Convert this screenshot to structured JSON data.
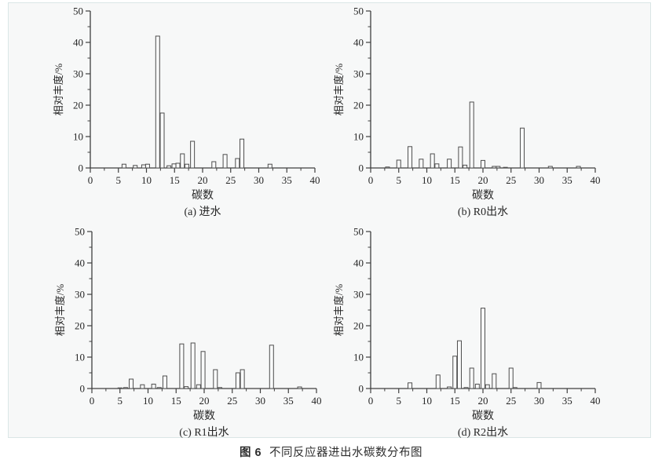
{
  "page": {
    "panel_background": "#f7f8f8",
    "panel_border": "#dae6e6",
    "axis_color": "#3f3f3f",
    "text_color": "#262626",
    "caption_number": "图 6",
    "caption_text": "不同反应器进出水碳数分布图"
  },
  "chart_data": [
    {
      "type": "bar",
      "label": "(a) 进水",
      "xlabel": "碳数",
      "ylabel": "相对丰度/%",
      "xlim": [
        0,
        40
      ],
      "ylim": [
        0,
        50
      ],
      "xticks": [
        0,
        5,
        10,
        15,
        20,
        25,
        30,
        35,
        40
      ],
      "yticks": [
        0,
        10,
        20,
        30,
        40,
        50
      ],
      "x_minor_step": 2.5,
      "y_minor_step": 5,
      "grid": false,
      "bar_fill": "#f9fafa",
      "bar_stroke": "#4d4d4d",
      "points": [
        [
          6,
          1.2
        ],
        [
          8,
          0.8
        ],
        [
          9.5,
          1.0
        ],
        [
          10.2,
          1.2
        ],
        [
          12,
          42.0
        ],
        [
          12.8,
          17.5
        ],
        [
          14,
          0.7
        ],
        [
          14.9,
          1.3
        ],
        [
          15.6,
          1.5
        ],
        [
          16.4,
          4.5
        ],
        [
          17.2,
          1.2
        ],
        [
          18.2,
          8.5
        ],
        [
          22,
          2.0
        ],
        [
          24,
          4.3
        ],
        [
          26.2,
          3.0
        ],
        [
          27,
          9.2
        ],
        [
          32,
          1.2
        ]
      ]
    },
    {
      "type": "bar",
      "label": "(b) R0出水",
      "xlabel": "碳数",
      "ylabel": "相对丰度/%",
      "xlim": [
        0,
        40
      ],
      "ylim": [
        0,
        50
      ],
      "xticks": [
        0,
        5,
        10,
        15,
        20,
        25,
        30,
        35,
        40
      ],
      "yticks": [
        0,
        10,
        20,
        30,
        40,
        50
      ],
      "x_minor_step": 2.5,
      "y_minor_step": 5,
      "grid": false,
      "bar_fill": "#f9fafa",
      "bar_stroke": "#4d4d4d",
      "points": [
        [
          3,
          0.3
        ],
        [
          5,
          2.5
        ],
        [
          7,
          6.8
        ],
        [
          9,
          2.8
        ],
        [
          11,
          4.5
        ],
        [
          11.8,
          1.3
        ],
        [
          14,
          2.8
        ],
        [
          16,
          6.7
        ],
        [
          16.8,
          0.9
        ],
        [
          18,
          21.0
        ],
        [
          20,
          2.4
        ],
        [
          22,
          0.5
        ],
        [
          22.7,
          0.5
        ],
        [
          24,
          0.2
        ],
        [
          27,
          12.7
        ],
        [
          32,
          0.5
        ],
        [
          37,
          0.5
        ]
      ]
    },
    {
      "type": "bar",
      "label": "(c) R1出水",
      "xlabel": "碳数",
      "ylabel": "相对丰度/%",
      "xlim": [
        0,
        40
      ],
      "ylim": [
        0,
        50
      ],
      "xticks": [
        0,
        5,
        10,
        15,
        20,
        25,
        30,
        35,
        40
      ],
      "yticks": [
        0,
        10,
        20,
        30,
        40,
        50
      ],
      "x_minor_step": 2.5,
      "y_minor_step": 5,
      "grid": false,
      "bar_fill": "#f9fafa",
      "bar_stroke": "#4d4d4d",
      "points": [
        [
          5,
          0.2
        ],
        [
          6,
          0.3
        ],
        [
          7,
          3.0
        ],
        [
          9,
          1.2
        ],
        [
          11,
          1.4
        ],
        [
          12,
          0.3
        ],
        [
          13,
          4.0
        ],
        [
          16,
          14.2
        ],
        [
          16.8,
          0.6
        ],
        [
          18,
          14.5
        ],
        [
          19,
          1.2
        ],
        [
          19.8,
          11.8
        ],
        [
          22,
          6.0
        ],
        [
          22.8,
          0.3
        ],
        [
          26,
          5.0
        ],
        [
          26.8,
          6.0
        ],
        [
          32,
          13.8
        ],
        [
          37,
          0.5
        ]
      ]
    },
    {
      "type": "bar",
      "label": "(d) R2出水",
      "xlabel": "碳数",
      "ylabel": "相对丰度/%",
      "xlim": [
        0,
        40
      ],
      "ylim": [
        0,
        50
      ],
      "xticks": [
        0,
        5,
        10,
        15,
        20,
        25,
        30,
        35,
        40
      ],
      "yticks": [
        0,
        10,
        20,
        30,
        40,
        50
      ],
      "x_minor_step": 2.5,
      "y_minor_step": 5,
      "grid": false,
      "bar_fill": "#f9fafa",
      "bar_stroke": "#4d4d4d",
      "points": [
        [
          7,
          1.8
        ],
        [
          12,
          4.3
        ],
        [
          14,
          0.5
        ],
        [
          15,
          10.3
        ],
        [
          15.8,
          15.2
        ],
        [
          17,
          0.3
        ],
        [
          18,
          6.5
        ],
        [
          19,
          1.4
        ],
        [
          20,
          25.6
        ],
        [
          20.8,
          1.2
        ],
        [
          22,
          4.7
        ],
        [
          25,
          6.5
        ],
        [
          25.7,
          0.3
        ],
        [
          30,
          1.9
        ]
      ]
    }
  ]
}
